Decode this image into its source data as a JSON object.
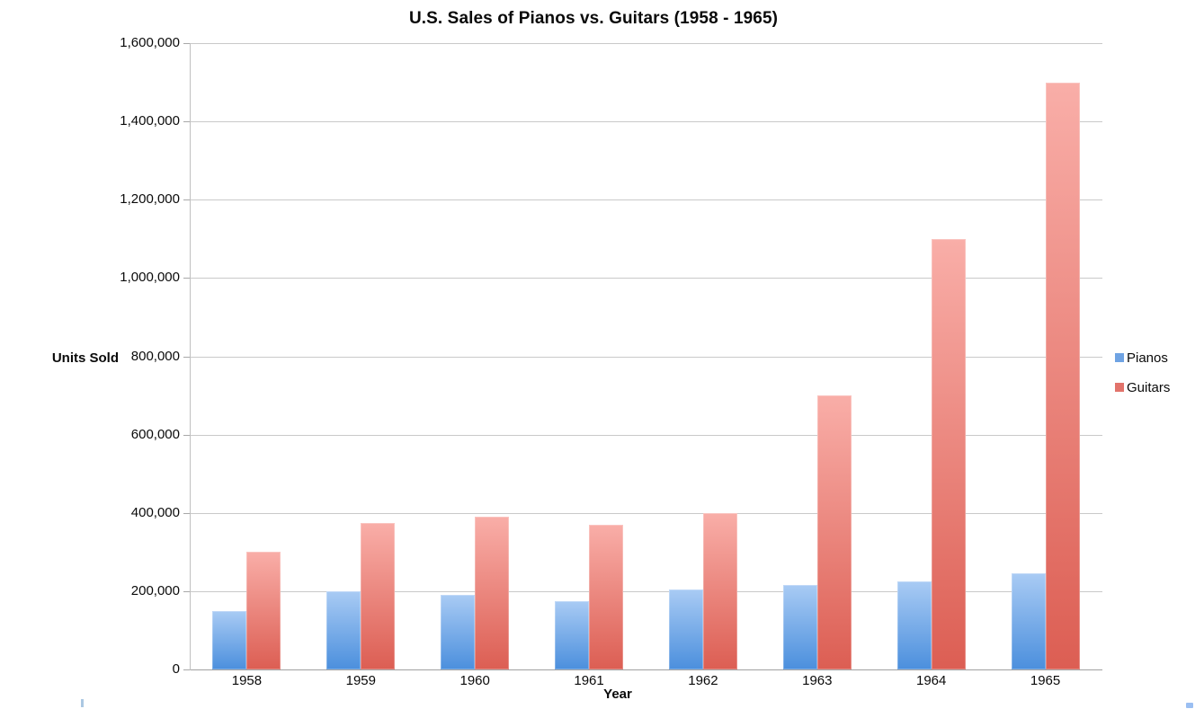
{
  "title": "U.S. Sales of Pianos vs. Guitars (1958 - 1965)",
  "legend": {
    "position": "right",
    "items": [
      {
        "label": "Pianos",
        "swatch_color": "#6fa3e3"
      },
      {
        "label": "Guitars",
        "swatch_color": "#e2736b"
      }
    ]
  },
  "colors": {
    "pianos_gradient_top": "#a9cbf4",
    "pianos_gradient_bottom": "#4b8fdd",
    "guitars_gradient_top": "#f9aea8",
    "guitars_gradient_bottom": "#dc5e53",
    "gridline": "#c9c9c9",
    "axis_line": "#a0a0a0",
    "text": "#0a0a0a"
  },
  "chart_data": {
    "type": "bar",
    "title": "U.S. Sales of Pianos vs. Guitars (1958 - 1965)",
    "categories": [
      "1958",
      "1959",
      "1960",
      "1961",
      "1962",
      "1963",
      "1964",
      "1965"
    ],
    "series": [
      {
        "name": "Pianos",
        "values": [
          150000,
          200000,
          190000,
          175000,
          205000,
          215000,
          225000,
          245000
        ],
        "color_top": "#a9cbf4",
        "color_bottom": "#4b8fdd",
        "legend_color": "#6fa3e3"
      },
      {
        "name": "Guitars",
        "values": [
          300000,
          375000,
          390000,
          370000,
          400000,
          700000,
          1100000,
          1500000
        ],
        "color_top": "#f9aea8",
        "color_bottom": "#dc5e53",
        "legend_color": "#e2736b"
      }
    ],
    "xlabel": "Year",
    "ylabel": "Units Sold",
    "ylim": [
      0,
      1600000
    ],
    "ytick_step": 200000,
    "ytick_values": [
      0,
      200000,
      400000,
      600000,
      800000,
      1000000,
      1200000,
      1400000,
      1600000
    ],
    "ytick_labels": [
      "0",
      "200,000",
      "400,000",
      "600,000",
      "800,000",
      "1,000,000",
      "1,200,000",
      "1,400,000",
      "1,600,000"
    ],
    "grid": true,
    "legend_position": "right"
  }
}
